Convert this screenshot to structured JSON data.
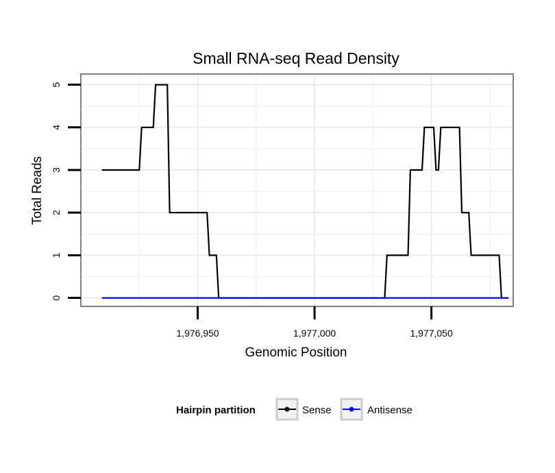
{
  "chart_data": {
    "type": "line",
    "title": "Small RNA-seq Read Density",
    "xlabel": "Genomic Position",
    "ylabel": "Total Reads",
    "xlim": [
      1976900,
      1977085
    ],
    "ylim": [
      -0.2,
      5.25
    ],
    "x_ticks": [
      1976950,
      1977000,
      1977050
    ],
    "x_tick_labels": [
      "1,976,950",
      "1,977,000",
      "1,977,050"
    ],
    "y_ticks": [
      0,
      1,
      2,
      3,
      4,
      5
    ],
    "y_tick_labels": [
      "0",
      "1",
      "2",
      "3",
      "4",
      "5"
    ],
    "grid": true,
    "legend": {
      "title": "Hairpin partition",
      "position": "bottom",
      "entries": [
        {
          "label": "Sense",
          "color": "#000000"
        },
        {
          "label": "Antisense",
          "color": "#0000ff"
        }
      ]
    },
    "series": [
      {
        "name": "Sense",
        "color": "#000000",
        "x": [
          1976909,
          1976925,
          1976926,
          1976931,
          1976932,
          1976937,
          1976938,
          1976954,
          1976955,
          1976958,
          1976959,
          1977030,
          1977031,
          1977040,
          1977041,
          1977046,
          1977047,
          1977051,
          1977052,
          1977053,
          1977054,
          1977062,
          1977063,
          1977066,
          1977067,
          1977079,
          1977080,
          1977083
        ],
        "values": [
          3,
          3,
          4,
          4,
          5,
          5,
          2,
          2,
          1,
          1,
          0,
          0,
          1,
          1,
          3,
          3,
          4,
          4,
          3,
          3,
          4,
          4,
          2,
          2,
          1,
          1,
          0,
          0
        ]
      },
      {
        "name": "Antisense",
        "color": "#0000ff",
        "x": [
          1976909,
          1977083
        ],
        "values": [
          0,
          0
        ]
      }
    ]
  }
}
